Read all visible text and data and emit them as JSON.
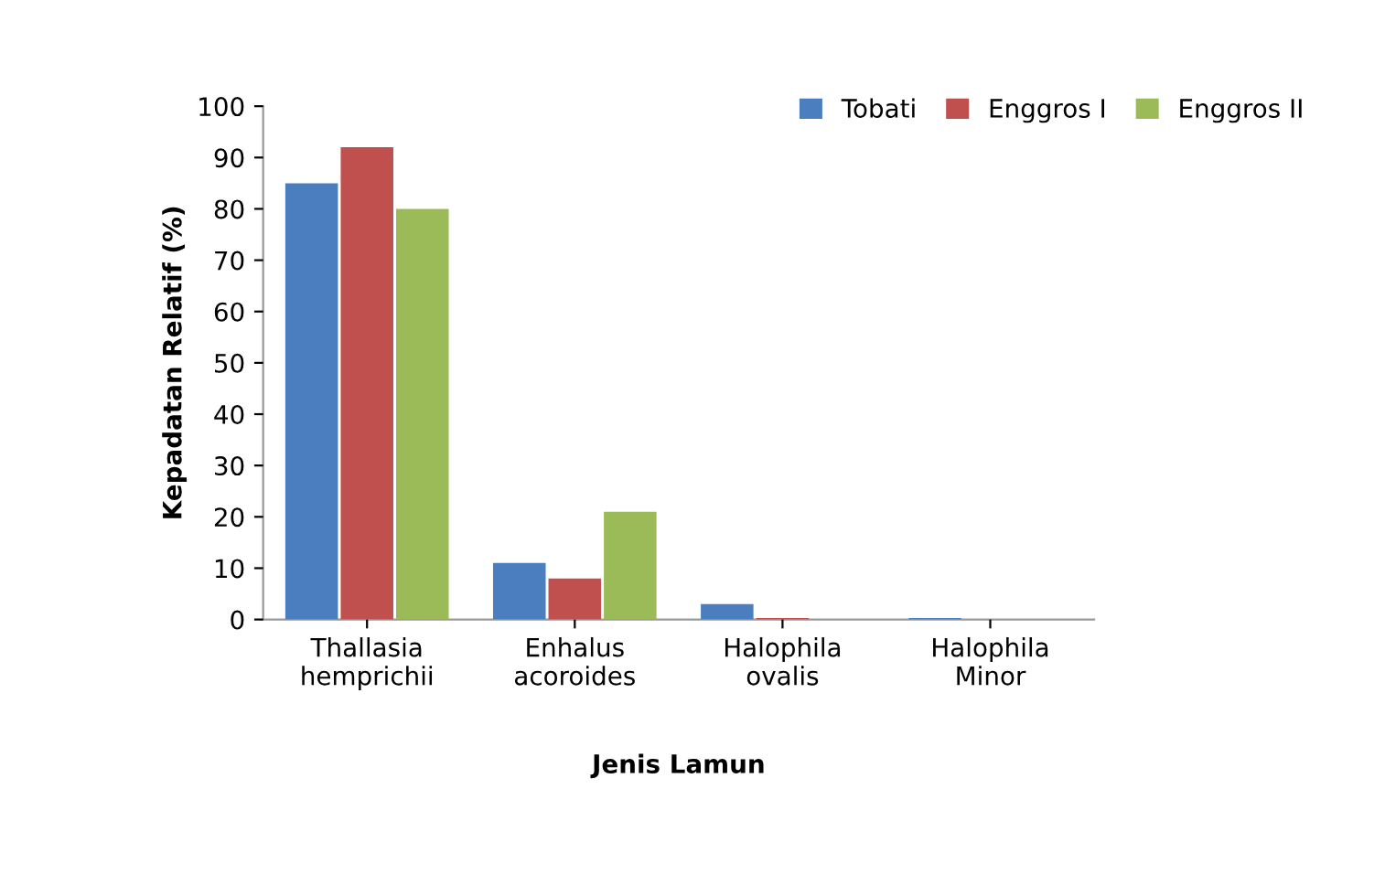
{
  "chart_data": {
    "type": "bar",
    "xlabel": "Jenis Lamun",
    "ylabel": "Kepadatan Relatif (%)",
    "categories": [
      "Thallasia\nhemprichii",
      "Enhalus\nacoroides",
      "Halophila\novalis",
      "Halophila\nMinor"
    ],
    "series": [
      {
        "name": "Tobati",
        "color": "#4a7ebf",
        "values": [
          85,
          11,
          3,
          0.3
        ]
      },
      {
        "name": "Enggros I",
        "color": "#c0504d",
        "values": [
          92,
          8,
          0.3,
          0
        ]
      },
      {
        "name": "Enggros II",
        "color": "#9bbb59",
        "values": [
          80,
          21,
          0,
          0
        ]
      }
    ],
    "ylim": [
      0,
      100
    ],
    "yticks": [
      0,
      10,
      20,
      30,
      40,
      50,
      60,
      70,
      80,
      90,
      100
    ],
    "grid": false,
    "legend": "top right"
  }
}
